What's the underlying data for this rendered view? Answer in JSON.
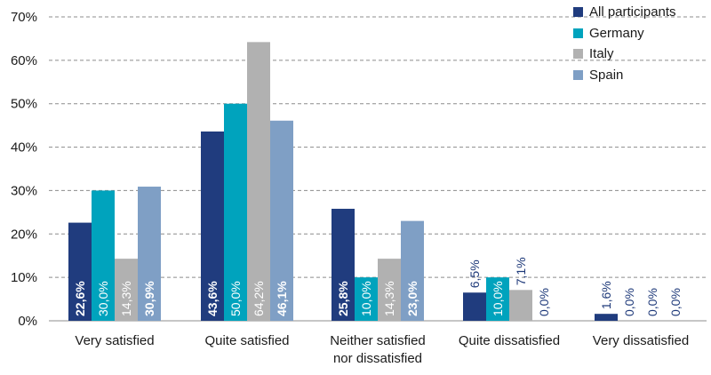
{
  "chart_data": {
    "type": "bar",
    "categories": [
      [
        "Very satisfied"
      ],
      [
        "Quite satisfied"
      ],
      [
        "Neither satisfied",
        "nor dissatisfied"
      ],
      [
        "Quite dissatisfied"
      ],
      [
        "Very dissatisfied"
      ]
    ],
    "series": [
      {
        "name": "All participants",
        "color": "#203C7E",
        "values": [
          22.6,
          43.6,
          25.8,
          6.5,
          1.6
        ],
        "labels": [
          "22,6%",
          "43,6%",
          "25,8%",
          "6,5%",
          "1,6%"
        ]
      },
      {
        "name": "Germany",
        "color": "#00A3BD",
        "values": [
          30.0,
          50.0,
          10.0,
          10.0,
          0.0
        ],
        "labels": [
          "30,0%",
          "50,0%",
          "10,0%",
          "10,0%",
          "0,0%"
        ]
      },
      {
        "name": "Italy",
        "color": "#B1B1B1",
        "values": [
          14.3,
          64.2,
          14.3,
          7.1,
          0.0
        ],
        "labels": [
          "14,3%",
          "64,2%",
          "14,3%",
          "7,1%",
          "0,0%"
        ]
      },
      {
        "name": "Spain",
        "color": "#7F9FC5",
        "values": [
          30.9,
          46.1,
          23.0,
          0.0,
          0.0
        ],
        "labels": [
          "30,9%",
          "46,1%",
          "23,0%",
          "0,0%",
          "0,0%"
        ]
      }
    ],
    "yticks": [
      "0%",
      "10%",
      "20%",
      "30%",
      "40%",
      "50%",
      "60%",
      "70%"
    ],
    "ylim": [
      0,
      70
    ],
    "grid": true,
    "legend": "top-right"
  }
}
